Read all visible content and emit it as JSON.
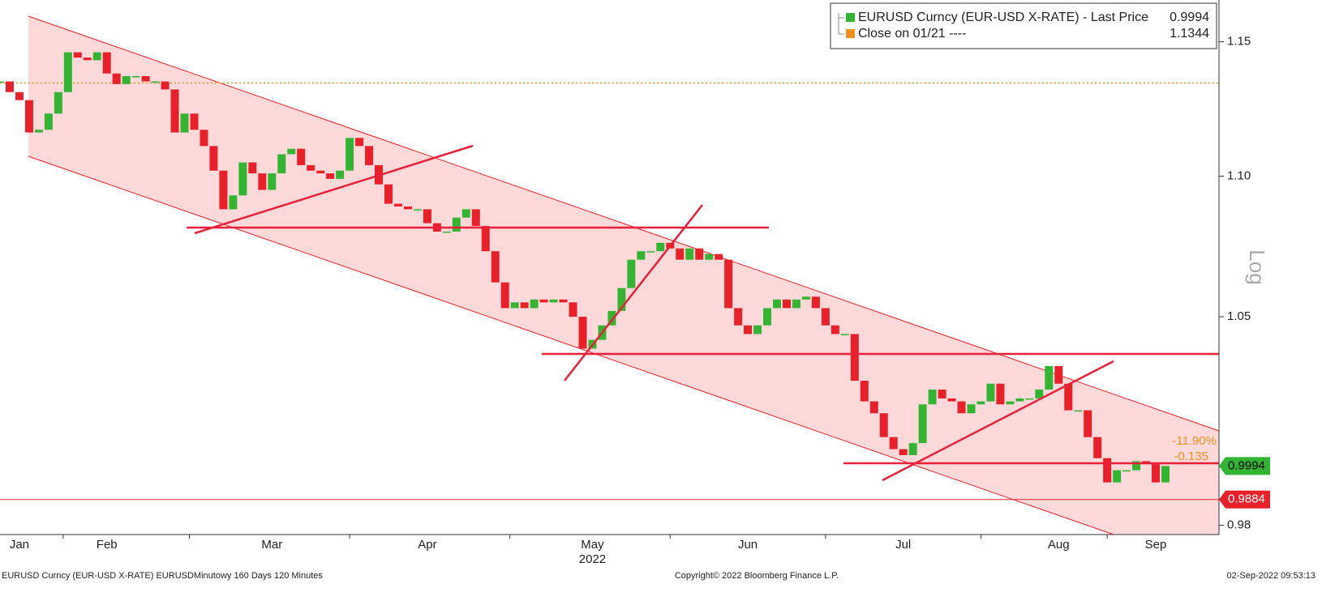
{
  "chart_data": {
    "type": "line",
    "log_scale": true,
    "axis_label": "Log",
    "year_label": "2022",
    "categories": [
      null,
      null,
      "Jan",
      null,
      null,
      null,
      null,
      null,
      null,
      null,
      null,
      "Feb",
      null,
      null,
      null,
      null,
      null,
      null,
      null,
      null,
      null,
      null,
      null,
      null,
      null,
      null,
      null,
      null,
      "Mar",
      null,
      null,
      null,
      null,
      null,
      null,
      null,
      null,
      null,
      null,
      null,
      null,
      null,
      null,
      null,
      "Apr",
      null,
      null,
      null,
      null,
      null,
      null,
      null,
      null,
      null,
      null,
      null,
      null,
      null,
      null,
      null,
      null,
      "May",
      null,
      null,
      null,
      null,
      null,
      null,
      null,
      null,
      null,
      null,
      null,
      null,
      null,
      null,
      null,
      "Jun",
      null,
      null,
      null,
      null,
      null,
      null,
      null,
      null,
      null,
      null,
      null,
      null,
      null,
      null,
      null,
      "Jul",
      null,
      null,
      null,
      null,
      null,
      null,
      null,
      null,
      null,
      null,
      null,
      null,
      null,
      null,
      null,
      "Aug",
      null,
      null,
      null,
      null,
      null,
      null,
      null,
      null,
      null,
      "Sep",
      null
    ],
    "series": [
      {
        "name": "EURUSD Curncy (EUR-USD X-RATE) - Last Price",
        "color": "#33b533",
        "down_color": "#e8202a",
        "values": [
          1.135,
          1.131,
          1.128,
          1.116,
          1.117,
          1.123,
          1.131,
          1.146,
          1.144,
          1.143,
          1.146,
          1.138,
          1.134,
          1.137,
          1.137,
          1.135,
          1.135,
          1.132,
          1.116,
          1.123,
          1.117,
          1.111,
          1.102,
          1.088,
          1.093,
          1.105,
          1.101,
          1.095,
          1.101,
          1.108,
          1.11,
          1.104,
          1.102,
          1.101,
          1.099,
          1.102,
          1.114,
          1.111,
          1.104,
          1.097,
          1.09,
          1.089,
          1.088,
          1.088,
          1.083,
          1.08,
          1.08,
          1.085,
          1.088,
          1.082,
          1.073,
          1.062,
          1.053,
          1.055,
          1.053,
          1.056,
          1.055,
          1.056,
          1.055,
          1.05,
          1.039,
          1.042,
          1.047,
          1.052,
          1.06,
          1.07,
          1.073,
          1.073,
          1.076,
          1.074,
          1.07,
          1.074,
          1.07,
          1.072,
          1.07,
          1.053,
          1.047,
          1.044,
          1.047,
          1.053,
          1.056,
          1.053,
          1.056,
          1.057,
          1.053,
          1.047,
          1.044,
          1.044,
          1.028,
          1.021,
          1.017,
          1.009,
          1.005,
          1.003,
          1.007,
          1.02,
          1.025,
          1.022,
          1.021,
          1.017,
          1.02,
          1.021,
          1.027,
          1.02,
          1.021,
          1.022,
          1.022,
          1.025,
          1.033,
          1.027,
          1.018,
          1.018,
          1.009,
          1.002,
          0.994,
          0.998,
          0.998,
          1.001,
          1.0,
          0.994,
          0.9994
        ]
      }
    ],
    "last_price": 0.9994,
    "reference_line": {
      "name": "Close on 01/21 ----",
      "value": 1.1344,
      "color": "#f0901e"
    },
    "support_line": {
      "value": 0.9884,
      "color": "#e8202a"
    },
    "change_pct": {
      "value": -11.9,
      "label": "-11.90%"
    },
    "change": -0.135,
    "ylim": [
      0.977,
      1.166
    ],
    "yticks": [
      0.98,
      1.05,
      {
        "value": 1.1,
        "label": "1.10"
      },
      1.15
    ]
  },
  "footer": {
    "left": "EURUSD Curncy (EUR-USD X-RATE) EURUSDMinutowy 160 Days 120 Minutes",
    "center": "Copyright© 2022 Bloomberg Finance L.P.",
    "right": "02-Sep-2022 09:53:13"
  }
}
